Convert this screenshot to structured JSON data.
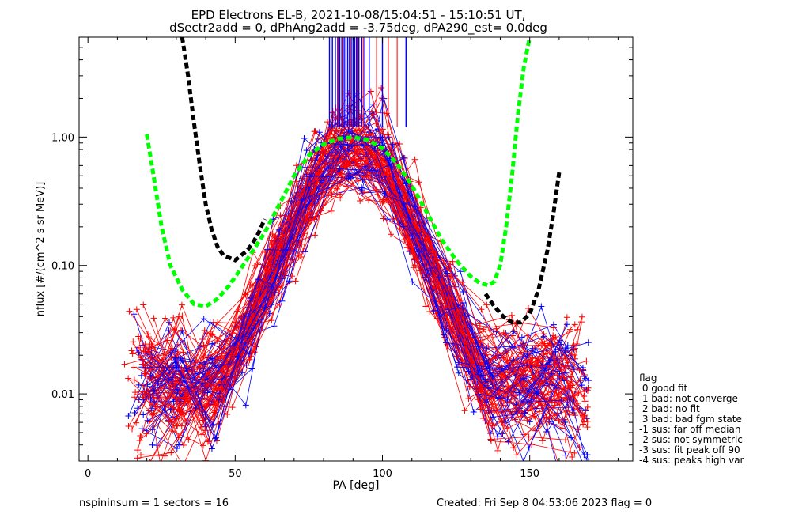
{
  "chart_data": {
    "type": "line",
    "title": "EPD Electrons EL-B, 2021-10-08/15:04:51 - 15:10:51 UT,",
    "subtitle": "dSectr2add = 0, dPhAng2add = -3.75deg, dPA290_est=   0.0deg",
    "xlabel": "PA [deg]",
    "ylabel": "nflux [#/(cm^2 s sr MeV)]",
    "xlim": [
      -3,
      185
    ],
    "ylim": [
      0.003,
      6.0
    ],
    "yscale": "log",
    "x_ticks": [
      0,
      50,
      100,
      150
    ],
    "x_tick_labels": [
      "0",
      "50",
      "100",
      "150"
    ],
    "y_ticks": [
      0.01,
      0.1,
      1.0
    ],
    "y_tick_labels": [
      "0.01",
      "0.10",
      "1.00"
    ],
    "grid": false,
    "colors": {
      "red": "#ff0000",
      "blue": "#0000ff",
      "green": "#00ff00",
      "black": "#000000"
    },
    "fit_curves": [
      {
        "color": "#00ff00",
        "style": "dashed",
        "x": [
          20,
          22,
          25,
          28,
          32,
          36,
          40,
          44,
          48,
          52,
          56,
          60,
          65,
          70,
          75,
          80,
          85,
          90,
          95,
          100,
          105,
          110,
          115,
          120,
          125,
          130,
          133,
          136,
          138,
          140,
          142,
          144,
          146,
          148,
          150
        ],
        "y": [
          1.05,
          0.55,
          0.2,
          0.1,
          0.065,
          0.05,
          0.048,
          0.055,
          0.07,
          0.095,
          0.13,
          0.18,
          0.3,
          0.5,
          0.72,
          0.88,
          0.97,
          1.0,
          0.95,
          0.82,
          0.62,
          0.42,
          0.26,
          0.16,
          0.11,
          0.082,
          0.073,
          0.07,
          0.075,
          0.1,
          0.2,
          0.5,
          1.5,
          3.5,
          6.0
        ]
      },
      {
        "color": "#000000",
        "style": "dashed",
        "x": [
          32,
          34,
          36,
          38,
          40,
          42,
          44,
          46,
          48,
          50,
          52,
          54,
          56,
          58,
          60
        ],
        "y": [
          6.0,
          3.0,
          1.3,
          0.6,
          0.3,
          0.19,
          0.14,
          0.12,
          0.115,
          0.11,
          0.12,
          0.13,
          0.15,
          0.18,
          0.23
        ]
      },
      {
        "color": "#000000",
        "style": "dashed",
        "x": [
          135,
          138,
          141,
          144,
          147,
          150,
          153,
          156,
          158,
          160
        ],
        "y": [
          0.06,
          0.048,
          0.04,
          0.036,
          0.036,
          0.042,
          0.065,
          0.13,
          0.25,
          0.53
        ]
      }
    ],
    "peak_markers": {
      "y_bottom": 1.2,
      "y_top": 6.0,
      "blue_x": [
        82,
        83,
        84,
        84.8,
        85.5,
        86.2,
        87,
        87.6,
        88.2,
        88.8,
        89.4,
        90,
        90.6,
        91.2,
        92,
        93,
        94,
        95.5,
        100,
        108
      ],
      "red_x": [
        85,
        86.5,
        89,
        91.5,
        93.5,
        98,
        102,
        105
      ]
    },
    "flag_legend": [
      "flag",
      " 0 good fit",
      " 1 bad: not converge",
      " 2 bad: no fit",
      " 3 bad: bad fgm state",
      "-1 sus: far off median",
      "-2 sus: not symmetric",
      "-3 sus: fit peak off 90",
      "-4 sus: peaks high var"
    ],
    "footer": {
      "left": "nspininsum =  1  sectors = 16",
      "right": "Created: Fri Sep  8 04:53:06 2023   flag = 0"
    }
  }
}
